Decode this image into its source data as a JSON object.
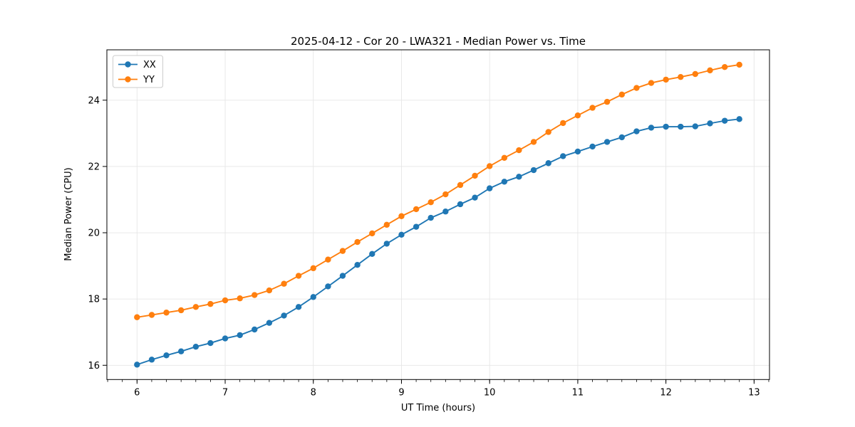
{
  "figure": {
    "title": "2025-04-12 - Cor 20 - LWA321 - Median Power vs. Time",
    "xlabel": "UT Time (hours)",
    "ylabel": "Median Power (CPU)"
  },
  "legend": {
    "position": "upper left",
    "items": [
      {
        "label": "XX",
        "color": "#1f77b4"
      },
      {
        "label": "YY",
        "color": "#ff7f0e"
      }
    ]
  },
  "chart_data": {
    "type": "line",
    "title": "2025-04-12 - Cor 20 - LWA321 - Median Power vs. Time",
    "xlabel": "UT Time (hours)",
    "ylabel": "Median Power (CPU)",
    "grid": true,
    "legend_position": "upper left",
    "marker": "o",
    "xlim": [
      5.658,
      13.175
    ],
    "ylim": [
      15.57,
      25.52
    ],
    "xticks": [
      6,
      7,
      8,
      9,
      10,
      11,
      12,
      13
    ],
    "yticks": [
      16,
      18,
      20,
      22,
      24
    ],
    "x_minor_step": 0.166667,
    "x": [
      6.0,
      6.167,
      6.333,
      6.5,
      6.667,
      6.833,
      7.0,
      7.167,
      7.333,
      7.5,
      7.667,
      7.833,
      8.0,
      8.167,
      8.333,
      8.5,
      8.667,
      8.833,
      9.0,
      9.167,
      9.333,
      9.5,
      9.667,
      9.833,
      10.0,
      10.167,
      10.333,
      10.5,
      10.667,
      10.833,
      11.0,
      11.167,
      11.333,
      11.5,
      11.667,
      11.833,
      12.0,
      12.167,
      12.333,
      12.5,
      12.667,
      12.833
    ],
    "series": [
      {
        "name": "XX",
        "color": "#1f77b4",
        "values": [
          16.02,
          16.17,
          16.3,
          16.42,
          16.56,
          16.67,
          16.81,
          16.91,
          17.08,
          17.28,
          17.5,
          17.76,
          18.06,
          18.38,
          18.7,
          19.03,
          19.36,
          19.67,
          19.94,
          20.18,
          20.45,
          20.64,
          20.86,
          21.06,
          21.34,
          21.54,
          21.69,
          21.89,
          22.1,
          22.31,
          22.45,
          22.6,
          22.74,
          22.88,
          23.06,
          23.17,
          23.2,
          23.2,
          23.21,
          23.3,
          23.38,
          23.43
        ]
      },
      {
        "name": "YY",
        "color": "#ff7f0e",
        "values": [
          17.45,
          17.52,
          17.59,
          17.66,
          17.76,
          17.85,
          17.96,
          18.02,
          18.12,
          18.26,
          18.46,
          18.7,
          18.93,
          19.19,
          19.45,
          19.72,
          19.98,
          20.24,
          20.5,
          20.71,
          20.92,
          21.16,
          21.44,
          21.72,
          22.01,
          22.26,
          22.49,
          22.74,
          23.04,
          23.31,
          23.54,
          23.77,
          23.95,
          24.17,
          24.37,
          24.52,
          24.62,
          24.7,
          24.79,
          24.9,
          25.0,
          25.07
        ]
      }
    ]
  }
}
